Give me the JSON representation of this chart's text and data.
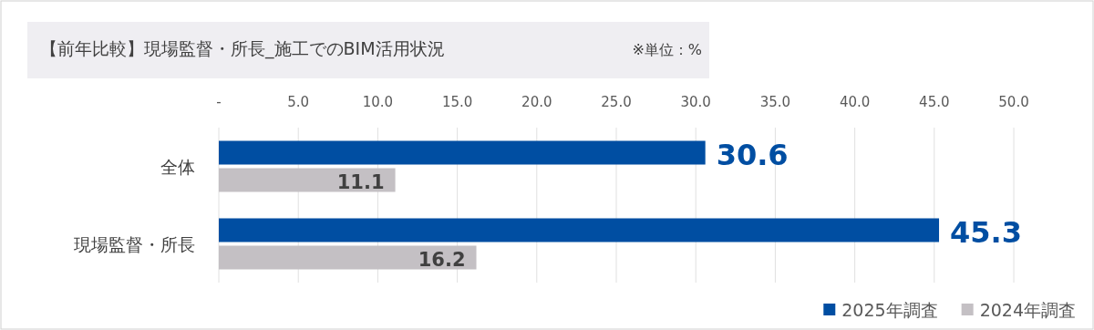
{
  "chart_data": {
    "type": "bar",
    "orientation": "horizontal",
    "title": "【前年比較】現場監督・所長_施工でのBIM活用状況",
    "subtitle": "※単位：%",
    "categories": [
      "全体",
      "現場監督・所長"
    ],
    "series": [
      {
        "name": "2025年調査",
        "color": "#004ea2",
        "values": [
          30.6,
          45.3
        ]
      },
      {
        "name": "2024年調査",
        "color": "#c4c0c4",
        "values": [
          11.1,
          16.2
        ]
      }
    ],
    "xlim": [
      0,
      50
    ],
    "xticks": [
      {
        "value": 0,
        "label": "-"
      },
      {
        "value": 5,
        "label": "5.0"
      },
      {
        "value": 10,
        "label": "10.0"
      },
      {
        "value": 15,
        "label": "15.0"
      },
      {
        "value": 20,
        "label": "20.0"
      },
      {
        "value": 25,
        "label": "25.0"
      },
      {
        "value": 30,
        "label": "30.0"
      },
      {
        "value": 35,
        "label": "35.0"
      },
      {
        "value": 40,
        "label": "40.0"
      },
      {
        "value": 45,
        "label": "45.0"
      },
      {
        "value": 50,
        "label": "50.0"
      }
    ],
    "grid": "x",
    "data_labels": true,
    "legend": "bottom right"
  }
}
